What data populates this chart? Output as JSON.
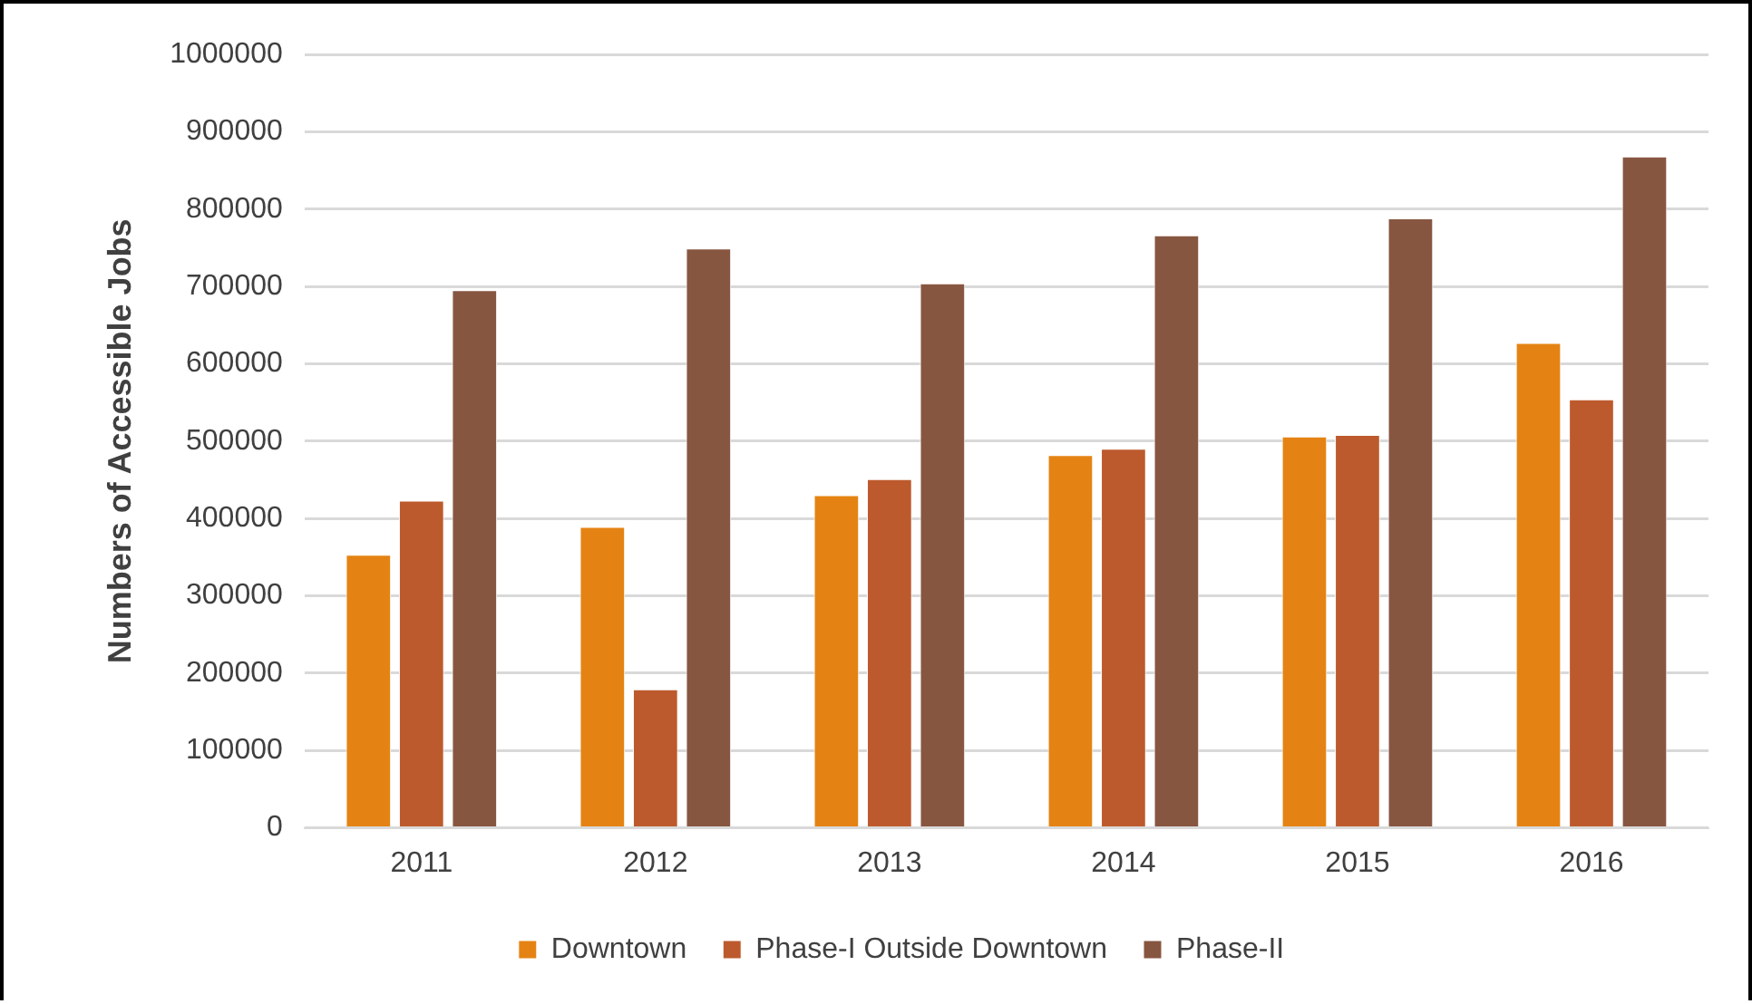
{
  "chart_data": {
    "type": "bar",
    "ylabel": "Numbers of Accessible Jobs",
    "categories": [
      "2011",
      "2012",
      "2013",
      "2014",
      "2015",
      "2016"
    ],
    "series": [
      {
        "name": "Downtown",
        "color": "#e48313",
        "values": [
          353000,
          389000,
          430000,
          482000,
          506000,
          627000
        ]
      },
      {
        "name": "Phase-I Outside Downtown",
        "color": "#bd5a2d",
        "values": [
          423000,
          179000,
          451000,
          490000,
          508000,
          554000
        ]
      },
      {
        "name": "Phase-II",
        "color": "#875641",
        "values": [
          695000,
          749000,
          704000,
          766000,
          788000,
          868000
        ]
      }
    ],
    "ylim": [
      0,
      1000000
    ],
    "yticks": [
      0,
      100000,
      200000,
      300000,
      400000,
      500000,
      600000,
      700000,
      800000,
      900000,
      1000000
    ],
    "grid": "y",
    "legend": "bottom"
  }
}
